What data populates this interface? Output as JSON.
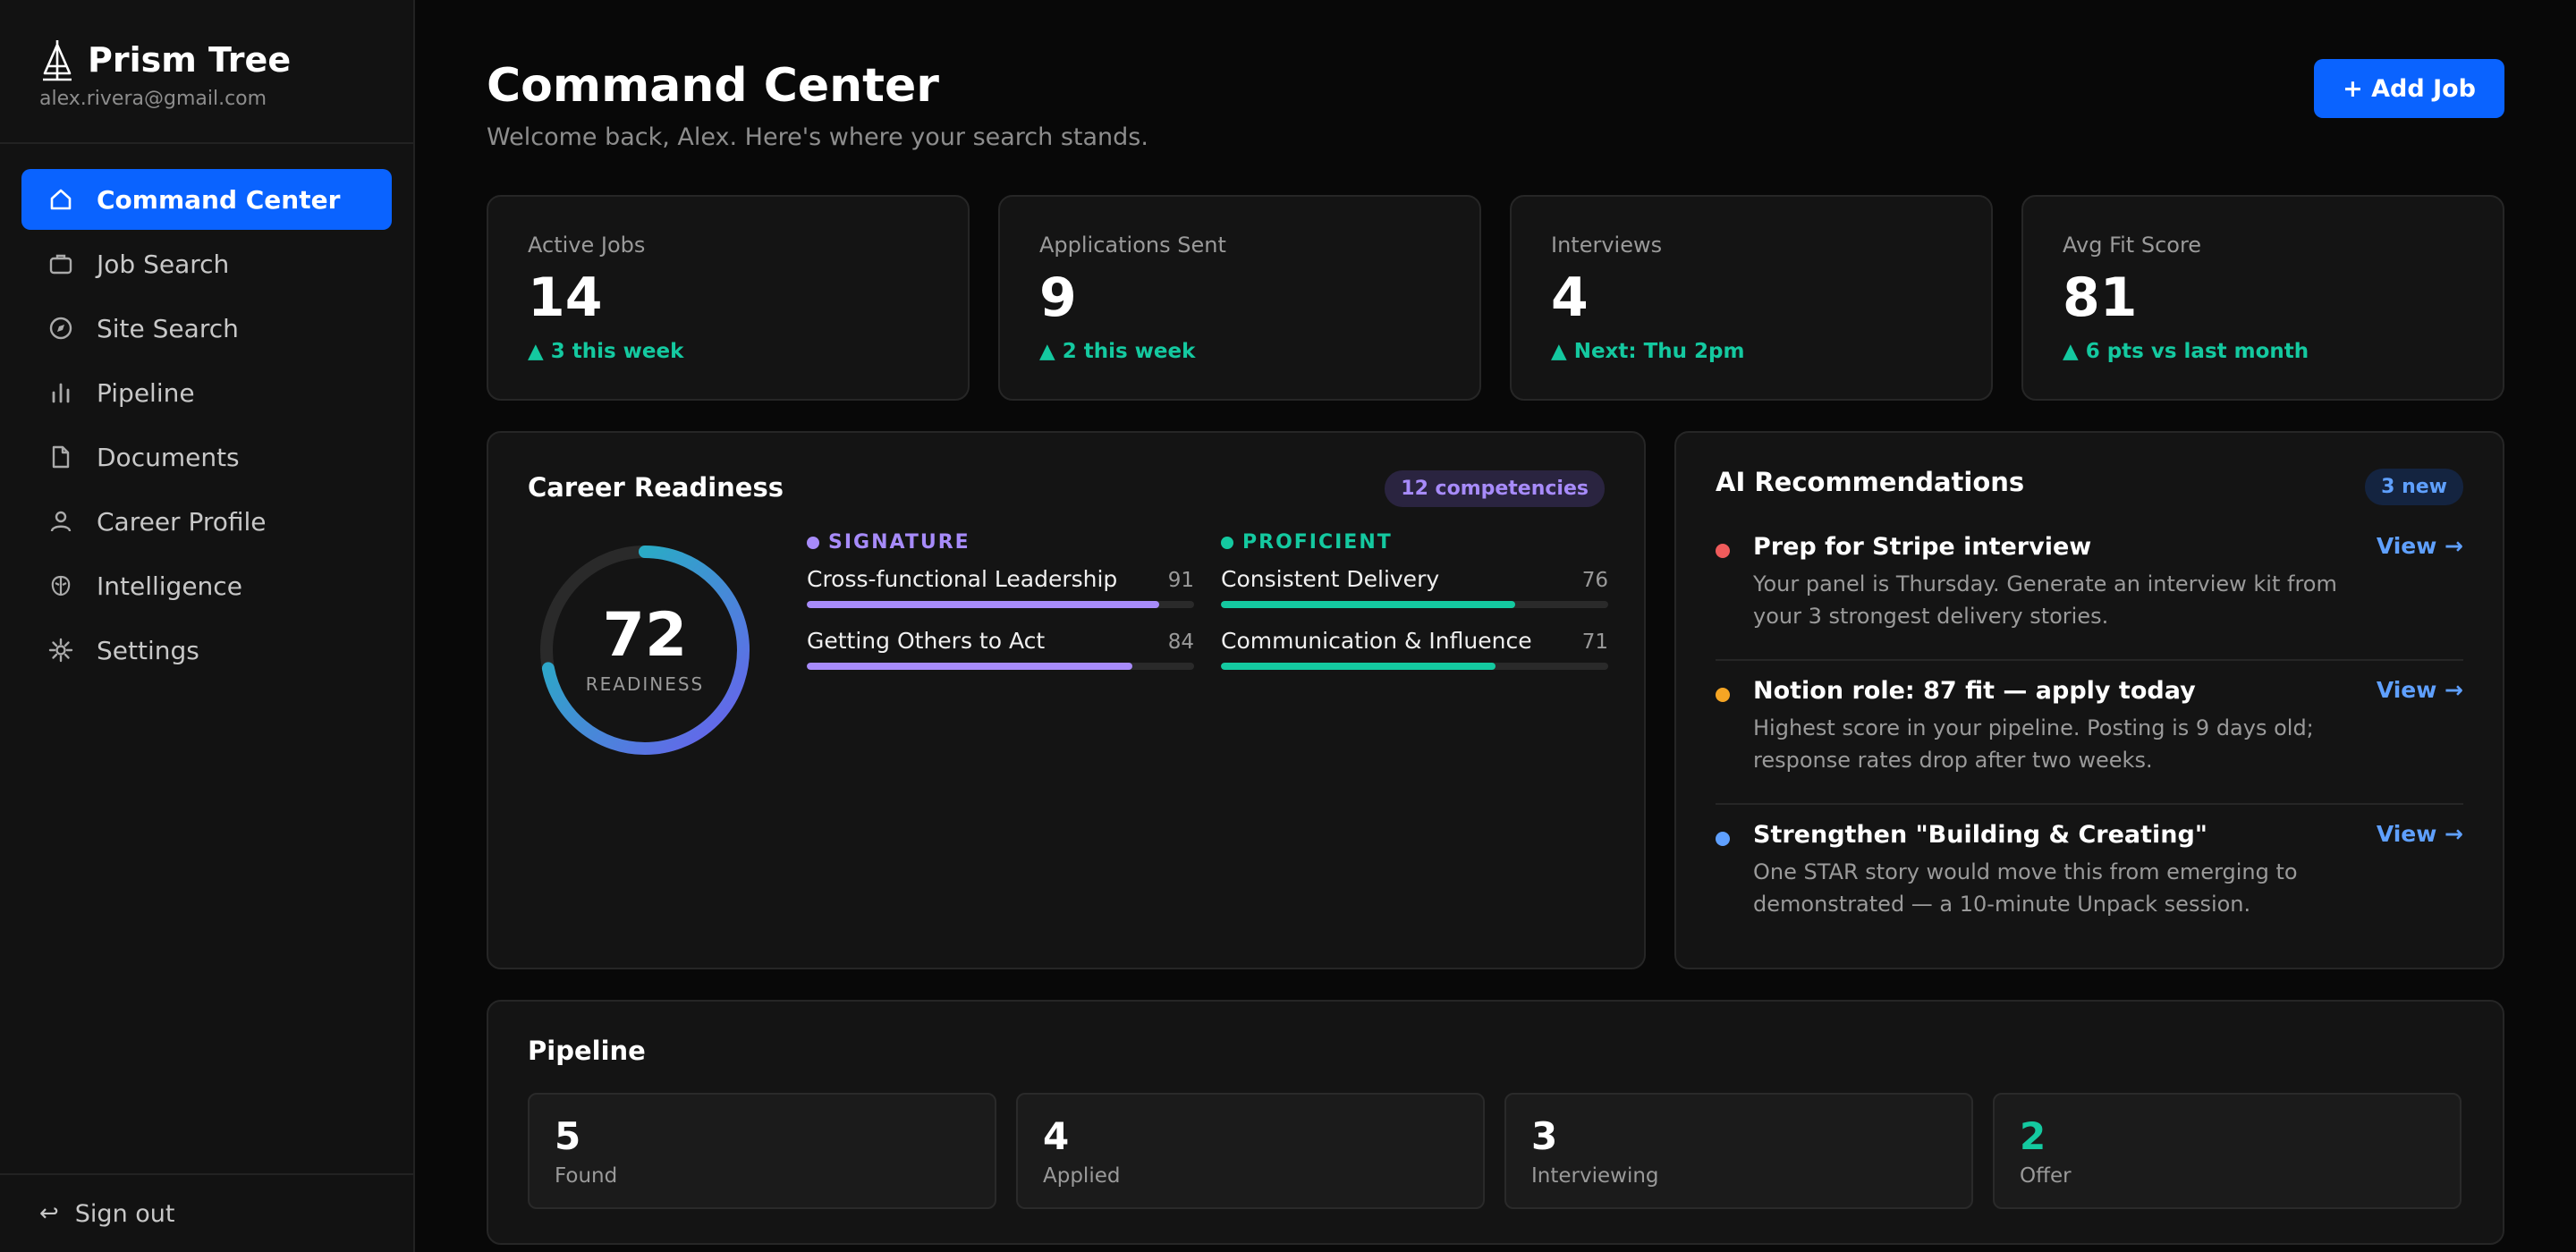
{
  "sidebar": {
    "brand_name": "Prism Tree",
    "email": "alex.rivera@gmail.com",
    "items": [
      {
        "label": "Command Center",
        "icon": "home-icon"
      },
      {
        "label": "Job Search",
        "icon": "briefcase-icon"
      },
      {
        "label": "Site Search",
        "icon": "compass-icon"
      },
      {
        "label": "Pipeline",
        "icon": "bar-chart-icon"
      },
      {
        "label": "Documents",
        "icon": "document-icon"
      },
      {
        "label": "Career Profile",
        "icon": "user-icon"
      },
      {
        "label": "Intelligence",
        "icon": "brain-icon"
      },
      {
        "label": "Settings",
        "icon": "gear-icon"
      }
    ],
    "sign_out": "Sign out"
  },
  "header": {
    "title": "Command Center",
    "subtitle": "Welcome back, Alex. Here's where your search stands.",
    "add_job": "+ Add Job"
  },
  "stats": [
    {
      "label": "Active Jobs",
      "value": "14",
      "delta": "▲ 3 this week"
    },
    {
      "label": "Applications Sent",
      "value": "9",
      "delta": "▲ 2 this week"
    },
    {
      "label": "Interviews",
      "value": "4",
      "delta": "▲ Next: Thu 2pm"
    },
    {
      "label": "Avg Fit Score",
      "value": "81",
      "delta": "▲ 6 pts vs last month"
    }
  ],
  "readiness": {
    "title": "Career Readiness",
    "badge": "12 competencies",
    "score": "72",
    "score_fraction": 0.72,
    "score_label": "READINESS",
    "signature": {
      "heading": "SIGNATURE",
      "color": "#a78bfa",
      "items": [
        {
          "name": "Cross-functional Leadership",
          "score": "91",
          "fraction": 0.91
        },
        {
          "name": "Getting Others to Act",
          "score": "84",
          "fraction": 0.84
        }
      ]
    },
    "proficient": {
      "heading": "PROFICIENT",
      "color": "#14c9a0",
      "items": [
        {
          "name": "Consistent Delivery",
          "score": "76",
          "fraction": 0.76
        },
        {
          "name": "Communication & Influence",
          "score": "71",
          "fraction": 0.71
        }
      ]
    }
  },
  "recommendations": {
    "title": "AI Recommendations",
    "badge": "3 new",
    "items": [
      {
        "title": "Prep for Stripe interview",
        "desc": "Your panel is Thursday. Generate an interview kit from your 3 strongest delivery stories.",
        "link": "View →",
        "color": "#ef5b5b"
      },
      {
        "title": "Notion role: 87 fit — apply today",
        "desc": "Highest score in your pipeline. Posting is 9 days old; response rates drop after two weeks.",
        "link": "View →",
        "color": "#f5a524"
      },
      {
        "title": "Strengthen \"Building & Creating\"",
        "desc": "One STAR story would move this from emerging to demonstrated — a 10-minute Unpack session.",
        "link": "View →",
        "color": "#5fa0ff"
      }
    ]
  },
  "pipeline": {
    "title": "Pipeline",
    "stages": [
      {
        "count": "5",
        "label": "Found",
        "color": "#ffffff"
      },
      {
        "count": "4",
        "label": "Applied",
        "color": "#ffffff"
      },
      {
        "count": "3",
        "label": "Interviewing",
        "color": "#ffffff"
      },
      {
        "count": "2",
        "label": "Offer",
        "color": "#14c9a0"
      }
    ]
  },
  "colors": {
    "accent": "#0a63ff",
    "positive": "#14c9a0"
  }
}
